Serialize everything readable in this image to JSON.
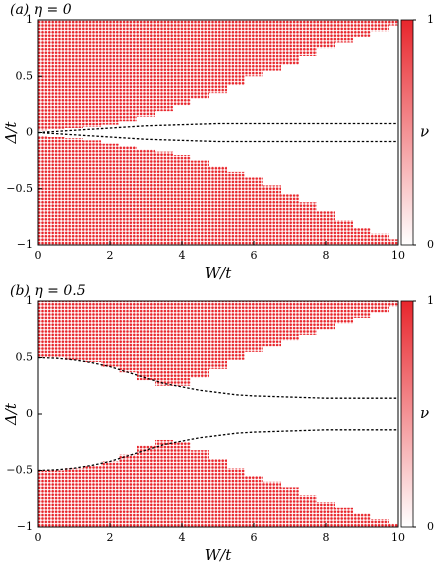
{
  "chart_data": [
    {
      "type": "region",
      "title": "(a) η = 0",
      "x_label": "W/t",
      "y_label": "Δ/t",
      "color": "#e8262c",
      "x": [
        0,
        0.5,
        1,
        1.5,
        2,
        2.5,
        3,
        3.5,
        4,
        4.5,
        5,
        5.5,
        6,
        6.5,
        7,
        7.5,
        8,
        8.5,
        9,
        9.5,
        10
      ],
      "fill_upper": [
        0.02,
        0.03,
        0.04,
        0.05,
        0.07,
        0.1,
        0.14,
        0.19,
        0.24,
        0.3,
        0.35,
        0.42,
        0.5,
        0.55,
        0.6,
        0.68,
        0.75,
        0.8,
        0.85,
        0.9,
        0.95
      ],
      "fill_lower": [
        -0.03,
        -0.04,
        -0.05,
        -0.07,
        -0.1,
        -0.12,
        -0.15,
        -0.17,
        -0.2,
        -0.25,
        -0.3,
        -0.35,
        -0.4,
        -0.47,
        -0.55,
        -0.62,
        -0.7,
        -0.78,
        -0.85,
        -0.9,
        -0.95
      ],
      "dashed": [
        [
          0,
          0.01,
          0.02,
          0.03,
          0.04,
          0.05,
          0.06,
          0.065,
          0.07,
          0.075,
          0.08,
          0.08,
          0.08,
          0.08,
          0.08,
          0.08,
          0.08,
          0.08,
          0.08,
          0.08,
          0.08
        ],
        [
          0,
          -0.01,
          -0.02,
          -0.03,
          -0.04,
          -0.05,
          -0.06,
          -0.065,
          -0.07,
          -0.075,
          -0.08,
          -0.08,
          -0.08,
          -0.08,
          -0.08,
          -0.08,
          -0.08,
          -0.08,
          -0.08,
          -0.08,
          -0.08
        ]
      ],
      "xlim": [
        0,
        10
      ],
      "xticks": [
        0,
        2,
        4,
        6,
        8,
        10
      ],
      "ylim": [
        -1,
        1
      ],
      "yticks": [
        {
          "value": -1,
          "label": "−1"
        },
        {
          "value": -0.5,
          "label": "−0.5"
        },
        0,
        0.5,
        1
      ],
      "colorbar": {
        "label": "ν",
        "lim": [
          0,
          1
        ],
        "ticks": [
          0,
          1
        ]
      }
    },
    {
      "type": "region",
      "title": "(b) η = 0.5",
      "x_label": "W/t",
      "y_label": "Δ/t",
      "color": "#e8262c",
      "x": [
        0,
        0.5,
        1,
        1.5,
        2,
        2.5,
        3,
        3.5,
        4,
        4.5,
        5,
        5.5,
        6,
        6.5,
        7,
        7.5,
        8,
        8.5,
        9,
        9.5,
        10
      ],
      "fill_upper": [
        0.5,
        0.5,
        0.48,
        0.46,
        0.42,
        0.37,
        0.3,
        0.25,
        0.25,
        0.32,
        0.4,
        0.48,
        0.55,
        0.6,
        0.65,
        0.7,
        0.75,
        0.8,
        0.85,
        0.9,
        0.95
      ],
      "fill_lower": [
        -0.5,
        -0.5,
        -0.48,
        -0.46,
        -0.42,
        -0.36,
        -0.28,
        -0.23,
        -0.25,
        -0.32,
        -0.4,
        -0.48,
        -0.55,
        -0.6,
        -0.65,
        -0.72,
        -0.78,
        -0.83,
        -0.88,
        -0.93,
        -0.97
      ],
      "dashed": [
        [
          0.5,
          0.495,
          0.48,
          0.455,
          0.42,
          0.37,
          0.32,
          0.27,
          0.24,
          0.21,
          0.19,
          0.17,
          0.16,
          0.155,
          0.15,
          0.145,
          0.14,
          0.14,
          0.14,
          0.14,
          0.14
        ],
        [
          -0.5,
          -0.495,
          -0.48,
          -0.455,
          -0.42,
          -0.37,
          -0.32,
          -0.27,
          -0.24,
          -0.21,
          -0.19,
          -0.17,
          -0.16,
          -0.155,
          -0.15,
          -0.145,
          -0.14,
          -0.14,
          -0.14,
          -0.14,
          -0.14
        ]
      ],
      "xlim": [
        0,
        10
      ],
      "xticks": [
        0,
        2,
        4,
        6,
        8,
        10
      ],
      "ylim": [
        -1,
        1
      ],
      "yticks": [
        {
          "value": -1,
          "label": "−1"
        },
        {
          "value": -0.5,
          "label": "−0.5"
        },
        0,
        0.5,
        1
      ],
      "colorbar": {
        "label": "ν",
        "lim": [
          0,
          1
        ],
        "ticks": [
          0,
          1
        ]
      }
    }
  ]
}
